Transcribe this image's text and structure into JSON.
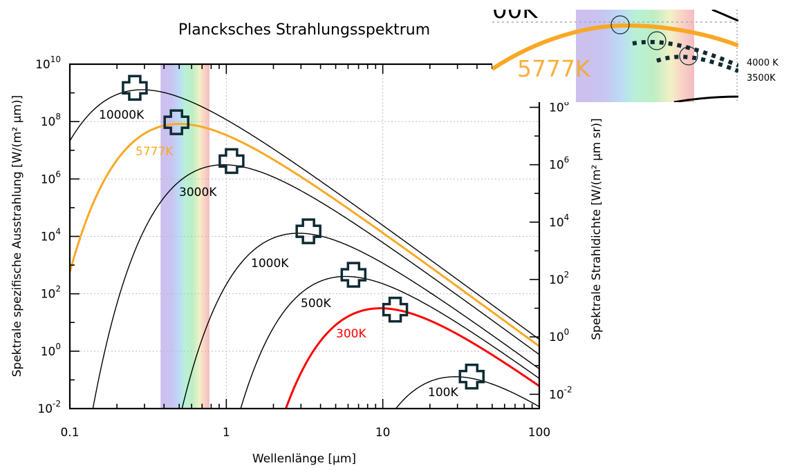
{
  "chart_data": {
    "type": "line",
    "title": "Plancksches Strahlungsspektrum",
    "xlabel": "Wellenlänge [µm]",
    "ylabel": "Spektrale spezifische Ausstrahlung [W/(m² µm)]",
    "y2label": "Spektrale Strahldichte [W/(m² µm sr)]",
    "xscale": "log",
    "yscale": "log",
    "xlim": [
      0.1,
      100
    ],
    "ylim": [
      0.01,
      10000000000
    ],
    "x_ticks": [
      {
        "value": 0.1,
        "label": "0.1"
      },
      {
        "value": 1,
        "label": "1"
      },
      {
        "value": 10,
        "label": "10"
      },
      {
        "value": 100,
        "label": "100"
      }
    ],
    "y_ticks": [
      {
        "value": 0.01,
        "base": "10",
        "exp": "-2"
      },
      {
        "value": 1,
        "base": "10",
        "exp": "0"
      },
      {
        "value": 100,
        "base": "10",
        "exp": "2"
      },
      {
        "value": 10000,
        "base": "10",
        "exp": "4"
      },
      {
        "value": 1000000,
        "base": "10",
        "exp": "6"
      },
      {
        "value": 100000000,
        "base": "10",
        "exp": "8"
      },
      {
        "value": 10000000000,
        "base": "10",
        "exp": "10"
      }
    ],
    "y2_ticks": [
      {
        "value": 0.01,
        "base": "10",
        "exp": "-2"
      },
      {
        "value": 1,
        "base": "10",
        "exp": "0"
      },
      {
        "value": 100,
        "base": "10",
        "exp": "2"
      },
      {
        "value": 10000,
        "base": "10",
        "exp": "4"
      },
      {
        "value": 1000000,
        "base": "10",
        "exp": "6"
      },
      {
        "value": 100000000,
        "base": "10",
        "exp": "8"
      }
    ],
    "grid": true,
    "visible_band_um": [
      0.38,
      0.78
    ],
    "series": [
      {
        "name": "10000K",
        "temperature_K": 10000,
        "color": "#000000",
        "peak_um": 0.29,
        "peak_value": 1290000000
      },
      {
        "name": "5777K",
        "temperature_K": 5777,
        "color": "#F9A825",
        "peak_um": 0.5,
        "peak_value": 83000000
      },
      {
        "name": "3000K",
        "temperature_K": 3000,
        "color": "#000000",
        "peak_um": 0.97,
        "peak_value": 3100000
      },
      {
        "name": "1000K",
        "temperature_K": 1000,
        "color": "#000000",
        "peak_um": 2.9,
        "peak_value": 12800
      },
      {
        "name": "500K",
        "temperature_K": 500,
        "color": "#000000",
        "peak_um": 5.8,
        "peak_value": 400
      },
      {
        "name": "300K",
        "temperature_K": 300,
        "color": "#FF0000",
        "peak_um": 9.66,
        "peak_value": 31
      },
      {
        "name": "100K",
        "temperature_K": 100,
        "color": "#000000",
        "peak_um": 28.98,
        "peak_value": 0.128
      }
    ],
    "peak_markers": [
      {
        "series": "10000K",
        "x": 0.26,
        "y": 1500000000
      },
      {
        "series": "5777K",
        "x": 0.48,
        "y": 95000000
      },
      {
        "series": "3000K",
        "x": 1.08,
        "y": 4200000
      },
      {
        "series": "1000K",
        "x": 3.35,
        "y": 15000
      },
      {
        "series": "500K",
        "x": 6.5,
        "y": 460
      },
      {
        "series": "300K",
        "x": 12.0,
        "y": 28
      },
      {
        "series": "100K",
        "x": 37.0,
        "y": 0.13
      }
    ],
    "inset": {
      "series_labels": [
        "5777K",
        "4000 K",
        "3500K"
      ],
      "partial_label": "00K"
    }
  }
}
